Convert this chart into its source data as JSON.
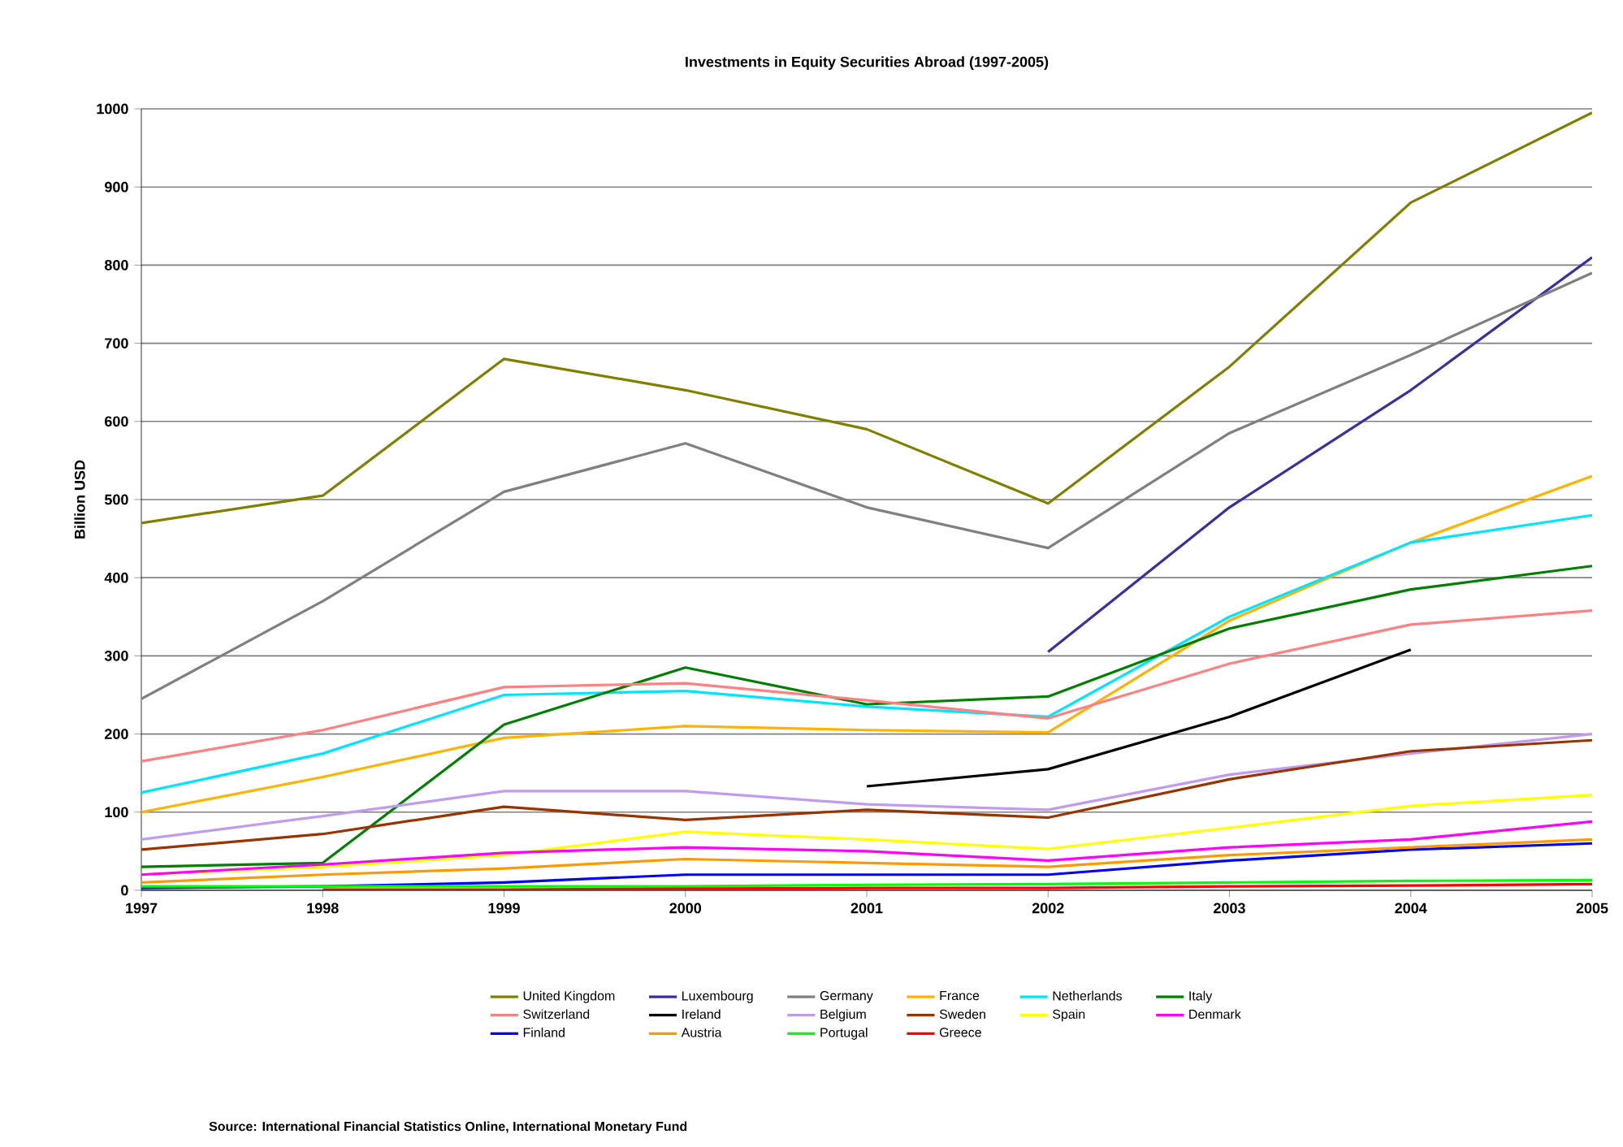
{
  "chart_data": {
    "type": "line",
    "title": "Investments in Equity Securities Abroad (1997-2005)",
    "ylabel": "Billion USD",
    "x": [
      1997,
      1998,
      1999,
      2000,
      2001,
      2002,
      2003,
      2004,
      2005
    ],
    "xlim": [
      1997,
      2005
    ],
    "xticks": [
      1997,
      1998,
      1999,
      2000,
      2001,
      2002,
      2003,
      2004,
      2005
    ],
    "ylim": [
      0,
      1000
    ],
    "yticks": [
      0,
      100,
      200,
      300,
      400,
      500,
      600,
      700,
      800,
      900,
      1000
    ],
    "grid": "y",
    "legend": "bottom",
    "marker": "none",
    "line_style": "solid",
    "annotations": [
      "Source: International Financial Statistics Online, International Monetary Fund"
    ],
    "series": [
      {
        "name": "United Kingdom",
        "color": "#808000",
        "values": [
          470,
          505,
          680,
          640,
          590,
          495,
          670,
          880,
          995
        ]
      },
      {
        "name": "Luxembourg",
        "color": "#3a2fa0",
        "values": [
          null,
          null,
          null,
          null,
          null,
          305,
          490,
          640,
          810
        ]
      },
      {
        "name": "Germany",
        "color": "#808080",
        "values": [
          245,
          370,
          510,
          572,
          490,
          438,
          585,
          685,
          790
        ]
      },
      {
        "name": "France",
        "color": "#ffb300",
        "values": [
          100,
          145,
          195,
          210,
          205,
          202,
          345,
          445,
          530
        ]
      },
      {
        "name": "Netherlands",
        "color": "#00e5ff",
        "values": [
          125,
          175,
          250,
          255,
          235,
          222,
          350,
          445,
          480
        ]
      },
      {
        "name": "Italy",
        "color": "#008000",
        "values": [
          30,
          35,
          212,
          285,
          238,
          248,
          335,
          385,
          415
        ]
      },
      {
        "name": "Switzerland",
        "color": "#ff8080",
        "values": [
          165,
          205,
          260,
          265,
          243,
          220,
          290,
          340,
          358
        ]
      },
      {
        "name": "Ireland",
        "color": "#000000",
        "values": [
          null,
          null,
          null,
          null,
          133,
          155,
          222,
          308,
          null
        ]
      },
      {
        "name": "Belgium",
        "color": "#c09cf0",
        "values": [
          65,
          95,
          127,
          127,
          110,
          103,
          148,
          175,
          200
        ]
      },
      {
        "name": "Sweden",
        "color": "#993300",
        "values": [
          52,
          72,
          107,
          90,
          103,
          93,
          142,
          178,
          192
        ]
      },
      {
        "name": "Spain",
        "color": "#ffff00",
        "values": [
          20,
          30,
          45,
          75,
          65,
          53,
          80,
          108,
          122
        ]
      },
      {
        "name": "Denmark",
        "color": "#ff00ff",
        "values": [
          20,
          33,
          48,
          55,
          50,
          38,
          55,
          65,
          88
        ]
      },
      {
        "name": "Finland",
        "color": "#0000ff",
        "values": [
          3,
          5,
          10,
          20,
          20,
          20,
          38,
          52,
          60
        ]
      },
      {
        "name": "Austria",
        "color": "#ff9900",
        "values": [
          10,
          20,
          28,
          40,
          35,
          30,
          45,
          55,
          65
        ]
      },
      {
        "name": "Portugal",
        "color": "#00ff00",
        "values": [
          5,
          5,
          5,
          5,
          7,
          8,
          10,
          12,
          13
        ]
      },
      {
        "name": "Greece",
        "color": "#ff0000",
        "values": [
          null,
          1,
          1,
          2,
          3,
          3,
          5,
          6,
          8
        ]
      }
    ]
  }
}
